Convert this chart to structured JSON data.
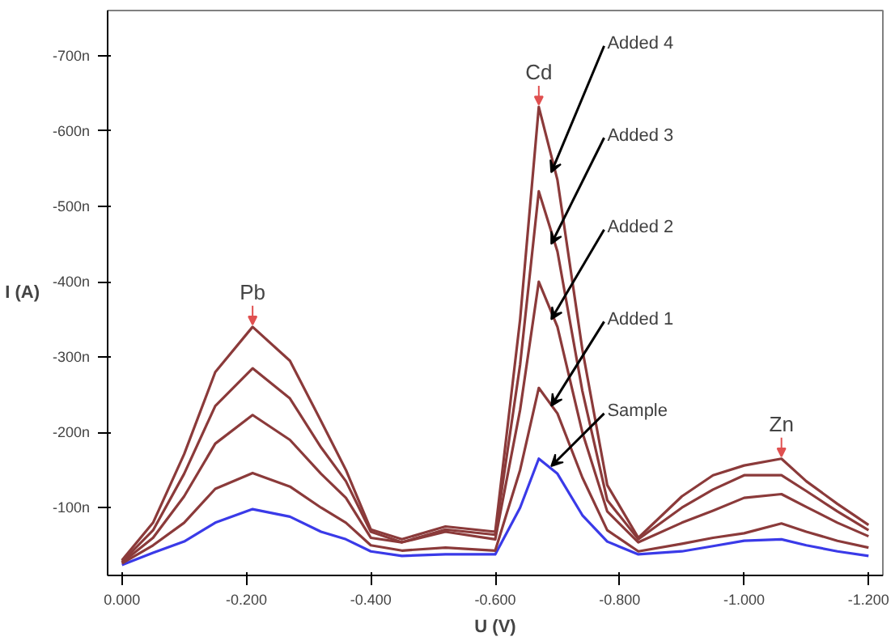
{
  "chart_data": {
    "type": "line",
    "xlabel": "U (V)",
    "ylabel": "I (A)",
    "x": [
      0,
      -0.05,
      -0.1,
      -0.15,
      -0.21,
      -0.27,
      -0.32,
      -0.36,
      -0.4,
      -0.45,
      -0.52,
      -0.6,
      -0.64,
      -0.67,
      -0.7,
      -0.74,
      -0.78,
      -0.83,
      -0.9,
      -0.95,
      -1.0,
      -1.06,
      -1.1,
      -1.15,
      -1.2
    ],
    "xlim": [
      0.023,
      -1.223
    ],
    "xticks": [
      {
        "value": 0,
        "label": "0.000"
      },
      {
        "value": -0.2,
        "label": "-0.200"
      },
      {
        "value": -0.4,
        "label": "-0.400"
      },
      {
        "value": -0.6,
        "label": "-0.600"
      },
      {
        "value": -0.8,
        "label": "-0.800"
      },
      {
        "value": -1.0,
        "label": "-1.000"
      },
      {
        "value": -1.2,
        "label": "-1.200"
      }
    ],
    "ylim": [
      -10,
      -760
    ],
    "yticks": [
      {
        "value": -100,
        "label": "-100n"
      },
      {
        "value": -200,
        "label": "-200n"
      },
      {
        "value": -300,
        "label": "-300n"
      },
      {
        "value": -400,
        "label": "-400n"
      },
      {
        "value": -500,
        "label": "-500n"
      },
      {
        "value": -600,
        "label": "-600n"
      },
      {
        "value": -700,
        "label": "-700n"
      }
    ],
    "series": [
      {
        "name": "Sample",
        "color": "#3a3ae8",
        "values": [
          -24,
          -40,
          -55,
          -80,
          -98,
          -88,
          -68,
          -58,
          -42,
          -36,
          -38,
          -38,
          -100,
          -165,
          -145,
          -90,
          -55,
          -38,
          -42,
          -49,
          -56,
          -58,
          -50,
          -42,
          -36
        ]
      },
      {
        "name": "Added 1",
        "color": "#8b3a3a",
        "values": [
          -26,
          -50,
          -80,
          -125,
          -146,
          -128,
          -100,
          -80,
          -50,
          -43,
          -47,
          -43,
          -150,
          -259,
          -225,
          -140,
          -70,
          -42,
          -52,
          -60,
          -66,
          -79,
          -68,
          -56,
          -47
        ]
      },
      {
        "name": "Added 2",
        "color": "#8b3a3a",
        "values": [
          -27,
          -60,
          -115,
          -185,
          -223,
          -190,
          -145,
          -113,
          -60,
          -54,
          -68,
          -58,
          -230,
          -400,
          -340,
          -200,
          -95,
          -54,
          -80,
          -96,
          -113,
          -118,
          -101,
          -80,
          -62
        ]
      },
      {
        "name": "Added 3",
        "color": "#8b3a3a",
        "values": [
          -28,
          -70,
          -145,
          -235,
          -285,
          -245,
          -180,
          -135,
          -68,
          -54,
          -71,
          -64,
          -290,
          -520,
          -440,
          -255,
          -110,
          -58,
          -100,
          -124,
          -143,
          -143,
          -122,
          -95,
          -70
        ]
      },
      {
        "name": "Added  4",
        "color": "#8b3a3a",
        "values": [
          -30,
          -80,
          -171,
          -280,
          -340,
          -295,
          -215,
          -150,
          -71,
          -58,
          -75,
          -68,
          -350,
          -632,
          -535,
          -310,
          -130,
          -60,
          -115,
          -143,
          -156,
          -165,
          -135,
          -105,
          -77
        ]
      }
    ],
    "annotations": [
      {
        "text": "Pb",
        "x": -0.21,
        "y": -340
      },
      {
        "text": "Cd",
        "x": -0.67,
        "y": -632
      },
      {
        "text": "Zn",
        "x": -1.06,
        "y": -165
      }
    ],
    "grid": false,
    "legend": false,
    "marker": "none",
    "line_style": "solid"
  }
}
